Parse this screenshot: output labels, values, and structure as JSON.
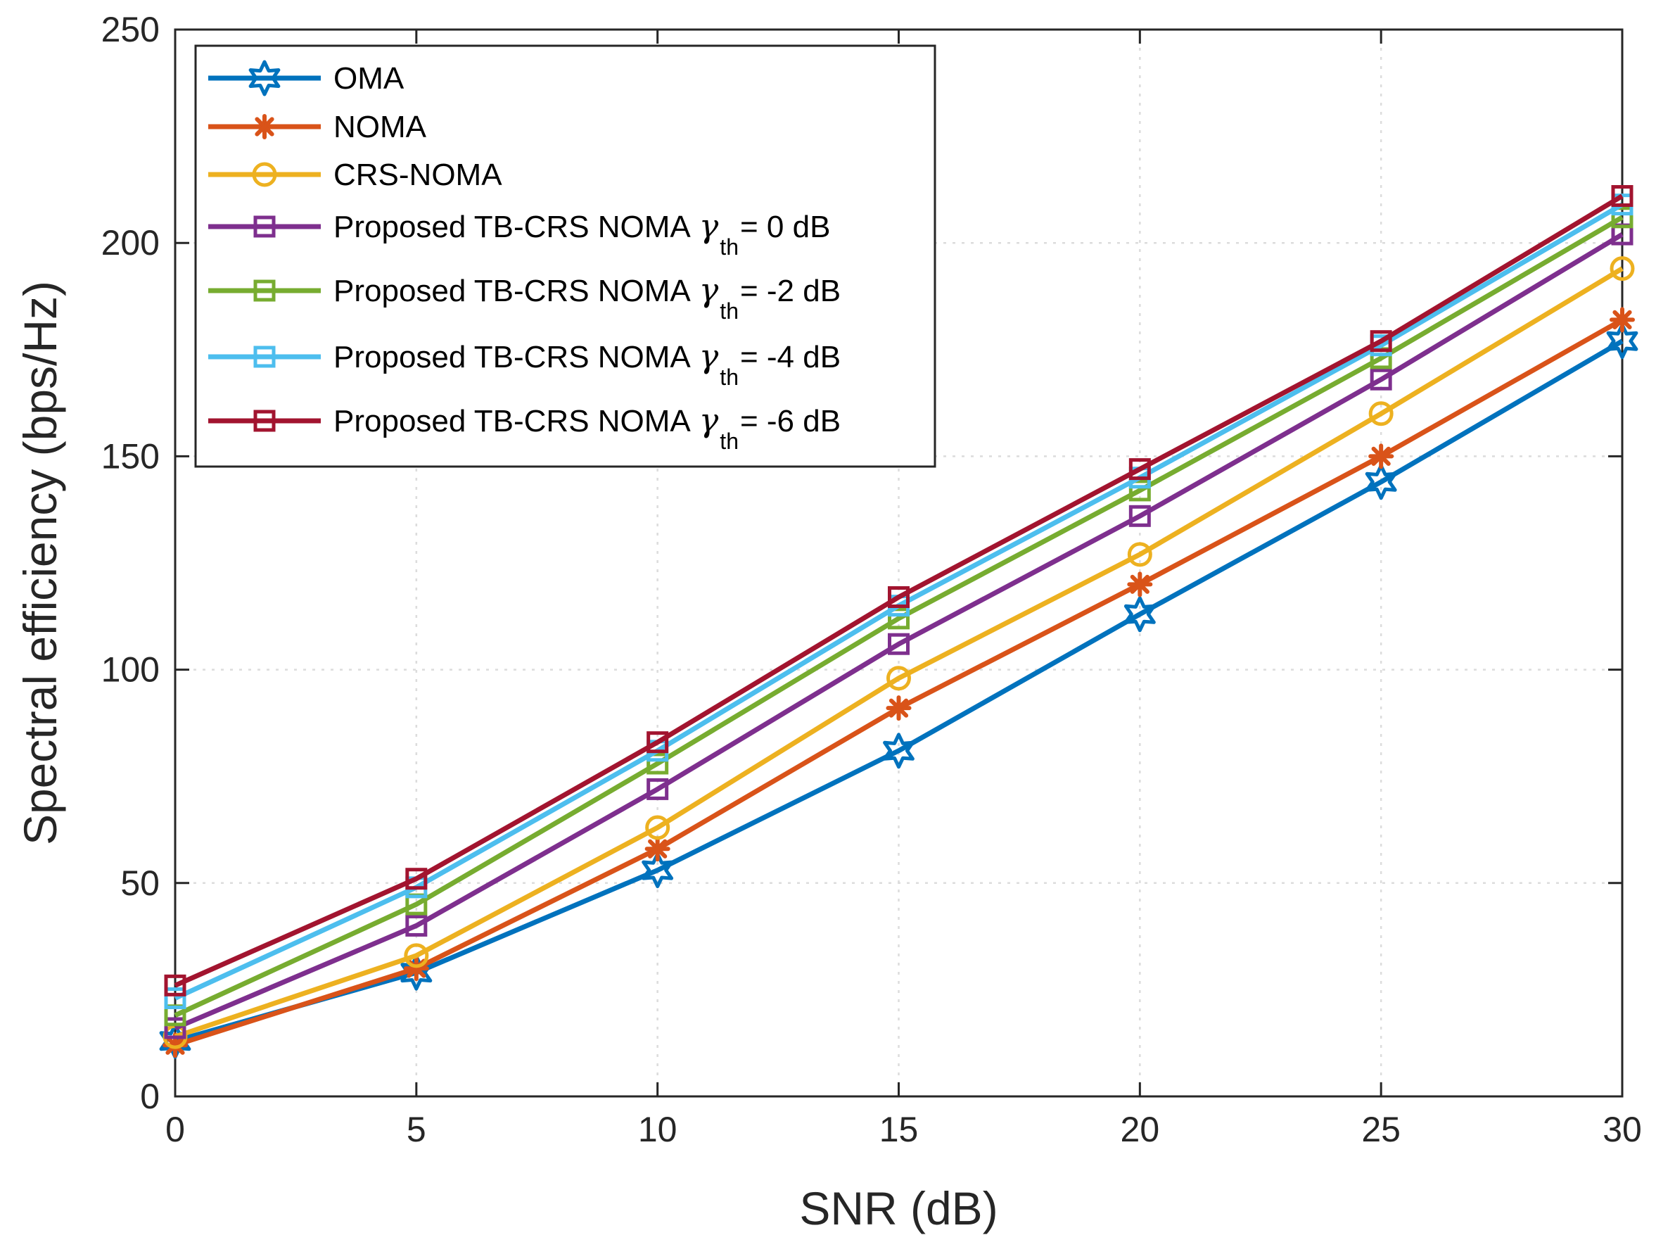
{
  "chart_data": {
    "type": "line",
    "title": "",
    "xlabel": "SNR (dB)",
    "ylabel": "Spectral efficiency (bps/Hz)",
    "x": [
      0,
      5,
      10,
      15,
      20,
      25,
      30
    ],
    "xlim": [
      0,
      30
    ],
    "ylim": [
      0,
      250
    ],
    "xticks": [
      0,
      5,
      10,
      15,
      20,
      25,
      30
    ],
    "yticks": [
      0,
      50,
      100,
      150,
      200,
      250
    ],
    "grid": true,
    "legend_position": "top-left",
    "series": [
      {
        "name": "OMA",
        "color": "#0072BD",
        "marker": "hexagram",
        "values": [
          13,
          29,
          53,
          81,
          113,
          144,
          177
        ]
      },
      {
        "name": "NOMA",
        "color": "#D95319",
        "marker": "asterisk",
        "values": [
          12,
          30,
          58,
          91,
          120,
          150,
          182
        ]
      },
      {
        "name": "CRS-NOMA",
        "color": "#EDB120",
        "marker": "circle",
        "values": [
          14,
          33,
          63,
          98,
          127,
          160,
          194
        ]
      },
      {
        "name": "Proposed TB-CRS NOMA",
        "gamma": "γ",
        "sub": "th",
        "threshold": " = 0 dB",
        "color": "#7E2F8E",
        "marker": "square",
        "values": [
          16,
          40,
          72,
          106,
          136,
          168,
          202
        ]
      },
      {
        "name": "Proposed TB-CRS NOMA",
        "gamma": "γ",
        "sub": "th",
        "threshold": " = -2 dB",
        "color": "#77AC30",
        "marker": "square",
        "values": [
          19,
          45,
          78,
          112,
          142,
          173,
          206
        ]
      },
      {
        "name": "Proposed TB-CRS NOMA",
        "gamma": "γ",
        "sub": "th",
        "threshold": " = -4 dB",
        "color": "#4DBEEE",
        "marker": "square",
        "values": [
          23,
          49,
          81,
          115,
          145,
          176,
          209
        ]
      },
      {
        "name": "Proposed TB-CRS NOMA",
        "gamma": "γ",
        "sub": "th",
        "threshold": " = -6 dB",
        "color": "#A2142F",
        "marker": "square",
        "values": [
          26,
          51,
          83,
          117,
          147,
          177,
          211
        ]
      }
    ]
  }
}
